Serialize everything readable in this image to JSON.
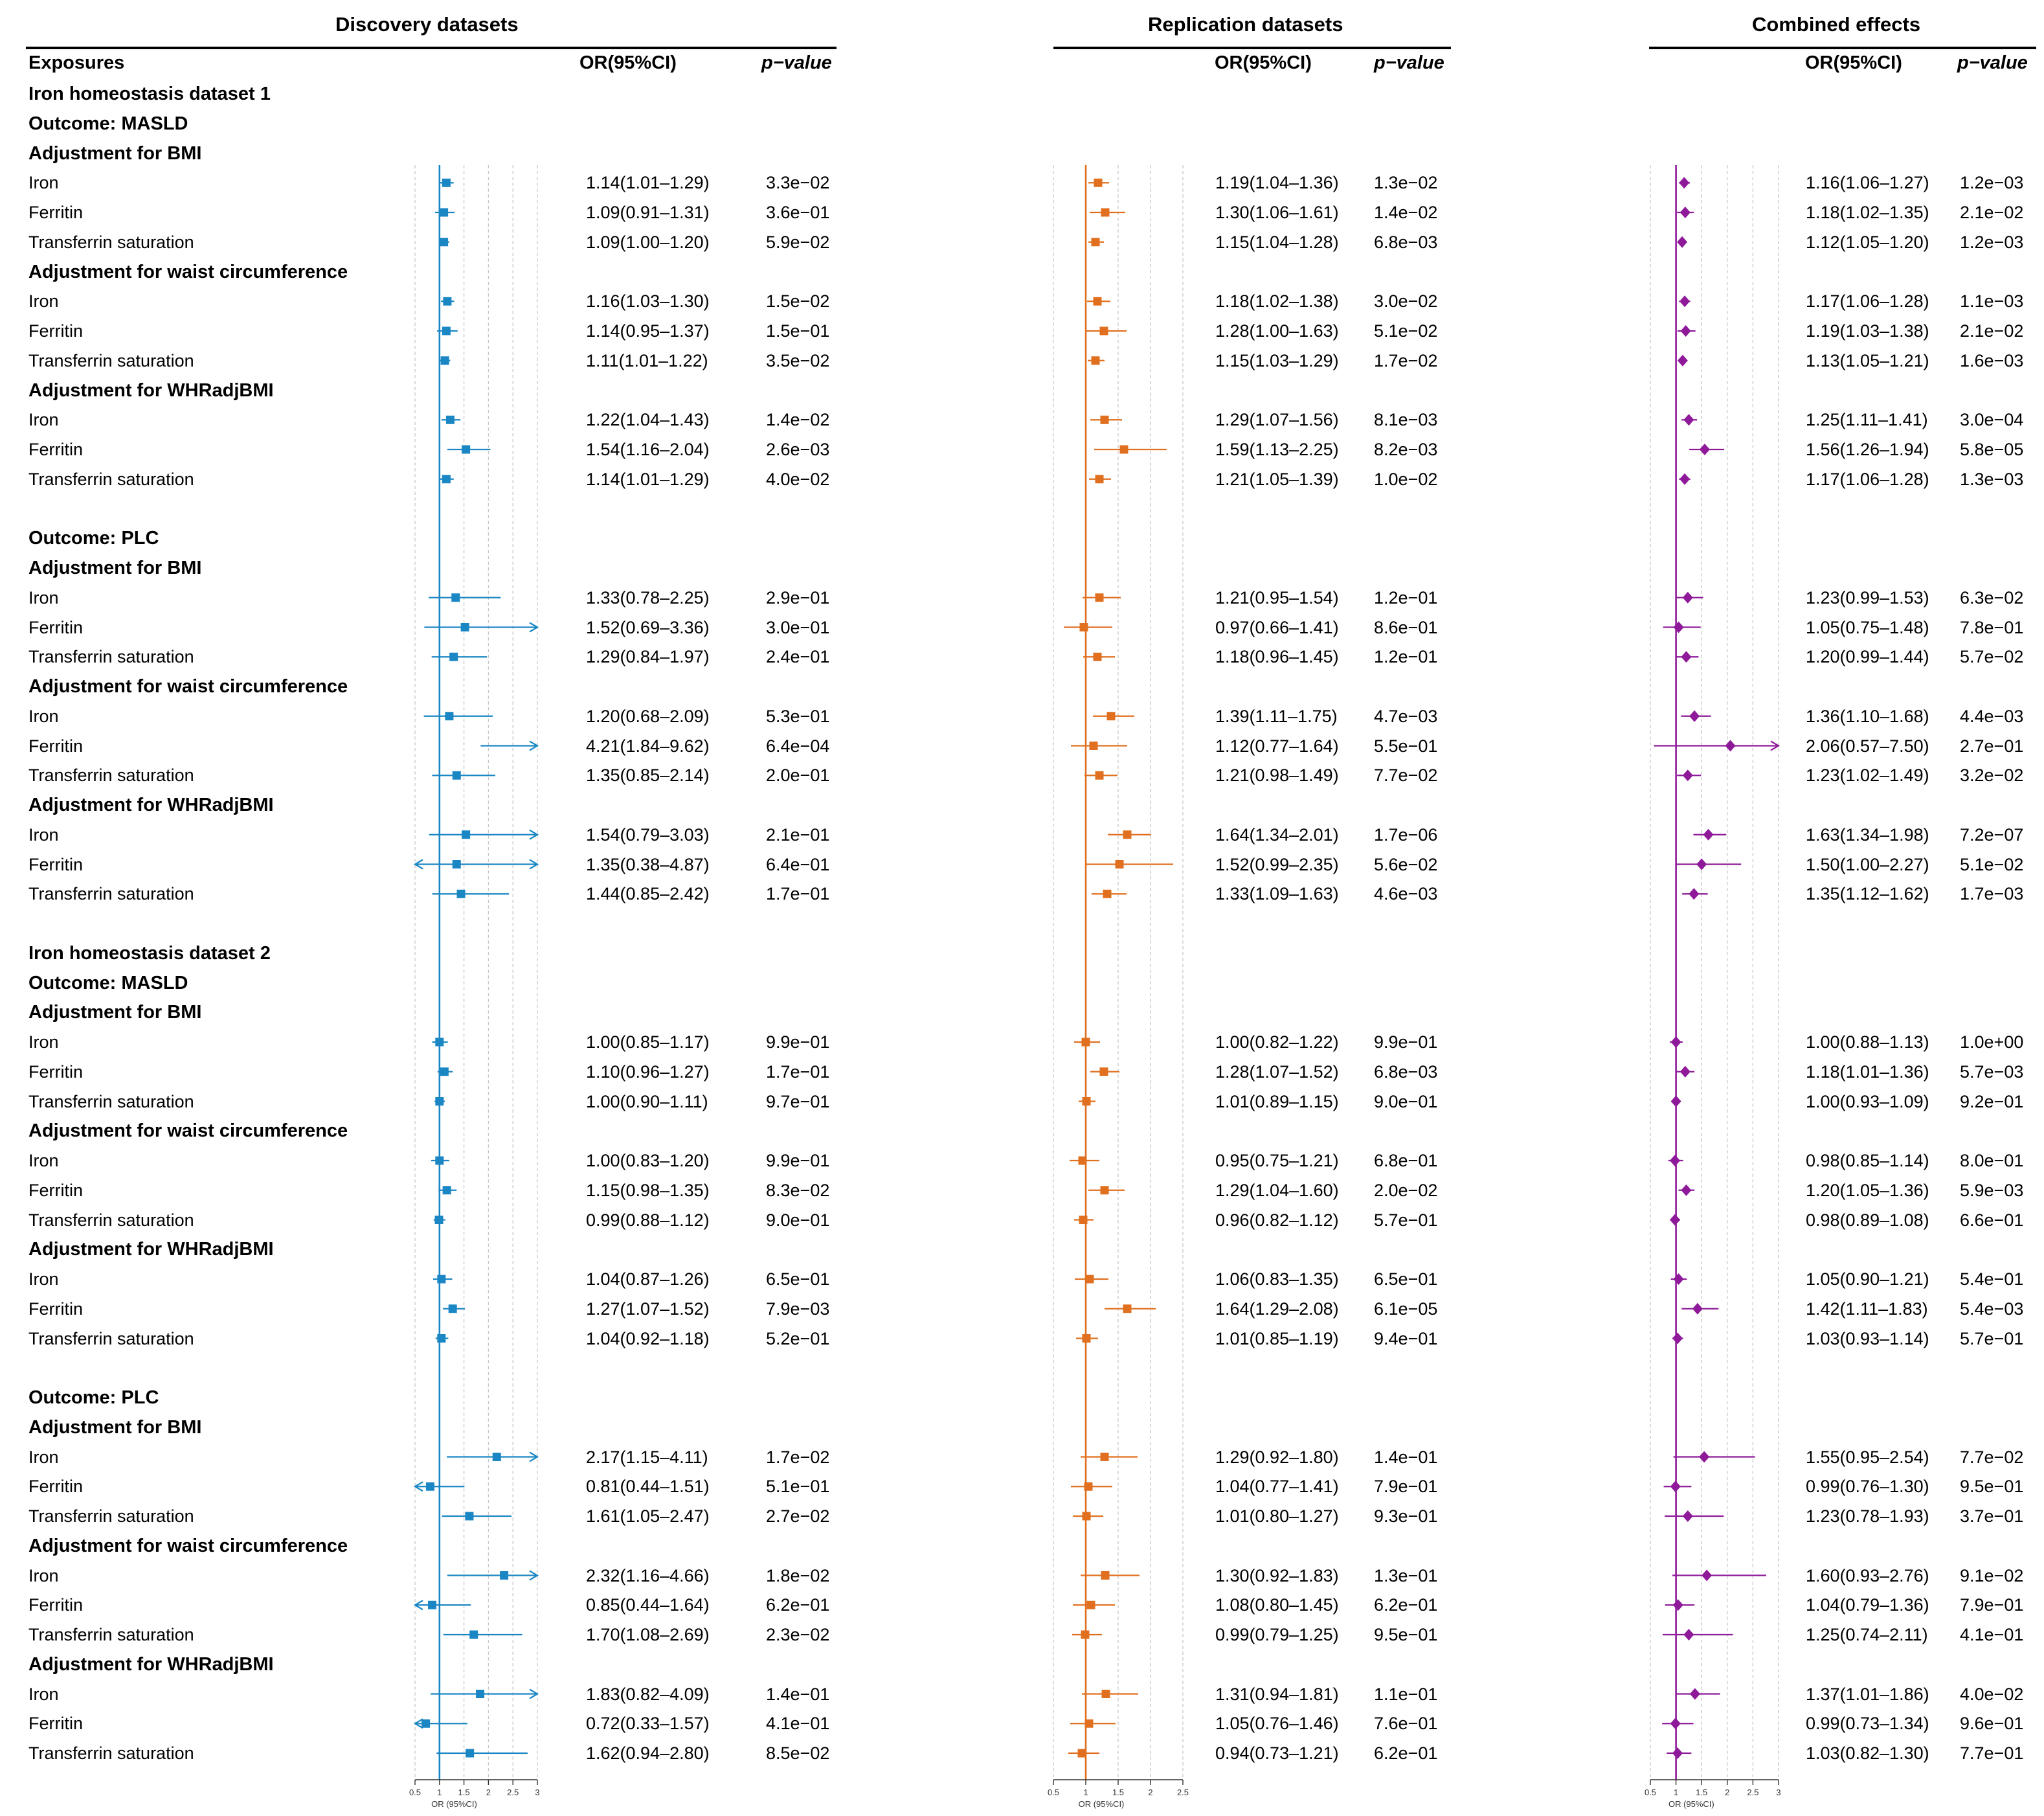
{
  "panels": [
    {
      "title": "Discovery datasets",
      "or_header": "OR(95%CI)",
      "p_header": "p−value",
      "color": "#1a87c4",
      "marker": "square",
      "axis_ticks": [
        "0.5",
        "1",
        "1.5",
        "2",
        "2.5",
        "3"
      ],
      "axis_label": "OR (95%CI)",
      "axis_range": [
        0.5,
        3
      ],
      "tick_values": [
        0.5,
        1,
        1.5,
        2,
        2.5,
        3
      ]
    },
    {
      "title": "Replication datasets",
      "or_header": "OR(95%CI)",
      "p_header": "p−value",
      "color": "#e0701f",
      "marker": "square",
      "axis_ticks": [
        "0.5",
        "1",
        "1.5",
        "2",
        "2.5"
      ],
      "axis_label": "OR (95%CI)",
      "axis_range": [
        0.5,
        2.5
      ],
      "tick_values": [
        0.5,
        1,
        1.5,
        2,
        2.5
      ]
    },
    {
      "title": "Combined effects",
      "or_header": "OR(95%CI)",
      "p_header": "p−value",
      "color": "#8e1a9a",
      "marker": "diamond",
      "axis_ticks": [
        "0.5",
        "1",
        "1.5",
        "2",
        "2.5",
        "3"
      ],
      "axis_label": "OR (95%CI)",
      "axis_range": [
        0.5,
        3
      ],
      "tick_values": [
        0.5,
        1,
        1.5,
        2,
        2.5,
        3
      ]
    }
  ],
  "exposures_header": "Exposures",
  "rows": [
    {
      "kind": "head",
      "label": "Iron homeostasis dataset 1"
    },
    {
      "kind": "head",
      "label": "Outcome: MASLD"
    },
    {
      "kind": "head",
      "label": "Adjustment for BMI"
    },
    {
      "kind": "data",
      "label": "Iron",
      "d": [
        "1.14(1.01–1.29)",
        "3.3e−02",
        1.14,
        1.01,
        1.29
      ],
      "r": [
        "1.19(1.04–1.36)",
        "1.3e−02",
        1.19,
        1.04,
        1.36
      ],
      "c": [
        "1.16(1.06–1.27)",
        "1.2e−03",
        1.16,
        1.06,
        1.27
      ]
    },
    {
      "kind": "data",
      "label": "Ferritin",
      "d": [
        "1.09(0.91–1.31)",
        "3.6e−01",
        1.09,
        0.91,
        1.31
      ],
      "r": [
        "1.30(1.06–1.61)",
        "1.4e−02",
        1.3,
        1.06,
        1.61
      ],
      "c": [
        "1.18(1.02–1.35)",
        "2.1e−02",
        1.18,
        1.02,
        1.35
      ]
    },
    {
      "kind": "data",
      "label": "Transferrin saturation",
      "d": [
        "1.09(1.00–1.20)",
        "5.9e−02",
        1.09,
        1.0,
        1.2
      ],
      "r": [
        "1.15(1.04–1.28)",
        "6.8e−03",
        1.15,
        1.04,
        1.28
      ],
      "c": [
        "1.12(1.05–1.20)",
        "1.2e−03",
        1.12,
        1.05,
        1.2
      ]
    },
    {
      "kind": "head",
      "label": "Adjustment for waist circumference"
    },
    {
      "kind": "data",
      "label": "Iron",
      "d": [
        "1.16(1.03–1.30)",
        "1.5e−02",
        1.16,
        1.03,
        1.3
      ],
      "r": [
        "1.18(1.02–1.38)",
        "3.0e−02",
        1.18,
        1.02,
        1.38
      ],
      "c": [
        "1.17(1.06–1.28)",
        "1.1e−03",
        1.17,
        1.06,
        1.28
      ]
    },
    {
      "kind": "data",
      "label": "Ferritin",
      "d": [
        "1.14(0.95–1.37)",
        "1.5e−01",
        1.14,
        0.95,
        1.37
      ],
      "r": [
        "1.28(1.00–1.63)",
        "5.1e−02",
        1.28,
        1.0,
        1.63
      ],
      "c": [
        "1.19(1.03–1.38)",
        "2.1e−02",
        1.19,
        1.03,
        1.38
      ]
    },
    {
      "kind": "data",
      "label": "Transferrin saturation",
      "d": [
        "1.11(1.01–1.22)",
        "3.5e−02",
        1.11,
        1.01,
        1.22
      ],
      "r": [
        "1.15(1.03–1.29)",
        "1.7e−02",
        1.15,
        1.03,
        1.29
      ],
      "c": [
        "1.13(1.05–1.21)",
        "1.6e−03",
        1.13,
        1.05,
        1.21
      ]
    },
    {
      "kind": "head",
      "label": "Adjustment for WHRadjBMI"
    },
    {
      "kind": "data",
      "label": "Iron",
      "d": [
        "1.22(1.04–1.43)",
        "1.4e−02",
        1.22,
        1.04,
        1.43
      ],
      "r": [
        "1.29(1.07–1.56)",
        "8.1e−03",
        1.29,
        1.07,
        1.56
      ],
      "c": [
        "1.25(1.11–1.41)",
        "3.0e−04",
        1.25,
        1.11,
        1.41
      ]
    },
    {
      "kind": "data",
      "label": "Ferritin",
      "d": [
        "1.54(1.16–2.04)",
        "2.6e−03",
        1.54,
        1.16,
        2.04
      ],
      "r": [
        "1.59(1.13–2.25)",
        "8.2e−03",
        1.59,
        1.13,
        2.25
      ],
      "c": [
        "1.56(1.26–1.94)",
        "5.8e−05",
        1.56,
        1.26,
        1.94
      ]
    },
    {
      "kind": "data",
      "label": "Transferrin saturation",
      "d": [
        "1.14(1.01–1.29)",
        "4.0e−02",
        1.14,
        1.01,
        1.29
      ],
      "r": [
        "1.21(1.05–1.39)",
        "1.0e−02",
        1.21,
        1.05,
        1.39
      ],
      "c": [
        "1.17(1.06–1.28)",
        "1.3e−03",
        1.17,
        1.06,
        1.28
      ]
    },
    {
      "kind": "blank"
    },
    {
      "kind": "head",
      "label": "Outcome: PLC"
    },
    {
      "kind": "head",
      "label": "Adjustment for BMI"
    },
    {
      "kind": "data",
      "label": "Iron",
      "d": [
        "1.33(0.78–2.25)",
        "2.9e−01",
        1.33,
        0.78,
        2.25
      ],
      "r": [
        "1.21(0.95–1.54)",
        "1.2e−01",
        1.21,
        0.95,
        1.54
      ],
      "c": [
        "1.23(0.99–1.53)",
        "6.3e−02",
        1.23,
        0.99,
        1.53
      ]
    },
    {
      "kind": "data",
      "label": "Ferritin",
      "d": [
        "1.52(0.69–3.36)",
        "3.0e−01",
        1.52,
        0.69,
        3.36
      ],
      "r": [
        "0.97(0.66–1.41)",
        "8.6e−01",
        0.97,
        0.66,
        1.41
      ],
      "c": [
        "1.05(0.75–1.48)",
        "7.8e−01",
        1.05,
        0.75,
        1.48
      ]
    },
    {
      "kind": "data",
      "label": "Transferrin saturation",
      "d": [
        "1.29(0.84–1.97)",
        "2.4e−01",
        1.29,
        0.84,
        1.97
      ],
      "r": [
        "1.18(0.96–1.45)",
        "1.2e−01",
        1.18,
        0.96,
        1.45
      ],
      "c": [
        "1.20(0.99–1.44)",
        "5.7e−02",
        1.2,
        0.99,
        1.44
      ]
    },
    {
      "kind": "head",
      "label": "Adjustment for waist circumference"
    },
    {
      "kind": "data",
      "label": "Iron",
      "d": [
        "1.20(0.68–2.09)",
        "5.3e−01",
        1.2,
        0.68,
        2.09
      ],
      "r": [
        "1.39(1.11–1.75)",
        "4.7e−03",
        1.39,
        1.11,
        1.75
      ],
      "c": [
        "1.36(1.10–1.68)",
        "4.4e−03",
        1.36,
        1.1,
        1.68
      ]
    },
    {
      "kind": "data",
      "label": "Ferritin",
      "d": [
        "4.21(1.84–9.62)",
        "6.4e−04",
        4.21,
        1.84,
        9.62
      ],
      "r": [
        "1.12(0.77–1.64)",
        "5.5e−01",
        1.12,
        0.77,
        1.64
      ],
      "c": [
        "2.06(0.57–7.50)",
        "2.7e−01",
        2.06,
        0.57,
        7.5
      ]
    },
    {
      "kind": "data",
      "label": "Transferrin saturation",
      "d": [
        "1.35(0.85–2.14)",
        "2.0e−01",
        1.35,
        0.85,
        2.14
      ],
      "r": [
        "1.21(0.98–1.49)",
        "7.7e−02",
        1.21,
        0.98,
        1.49
      ],
      "c": [
        "1.23(1.02–1.49)",
        "3.2e−02",
        1.23,
        1.02,
        1.49
      ]
    },
    {
      "kind": "head",
      "label": "Adjustment for WHRadjBMI"
    },
    {
      "kind": "data",
      "label": "Iron",
      "d": [
        "1.54(0.79–3.03)",
        "2.1e−01",
        1.54,
        0.79,
        3.03
      ],
      "r": [
        "1.64(1.34–2.01)",
        "1.7e−06",
        1.64,
        1.34,
        2.01
      ],
      "c": [
        "1.63(1.34–1.98)",
        "7.2e−07",
        1.63,
        1.34,
        1.98
      ]
    },
    {
      "kind": "data",
      "label": "Ferritin",
      "d": [
        "1.35(0.38–4.87)",
        "6.4e−01",
        1.35,
        0.38,
        4.87
      ],
      "r": [
        "1.52(0.99–2.35)",
        "5.6e−02",
        1.52,
        0.99,
        2.35
      ],
      "c": [
        "1.50(1.00–2.27)",
        "5.1e−02",
        1.5,
        1.0,
        2.27
      ]
    },
    {
      "kind": "data",
      "label": "Transferrin saturation",
      "d": [
        "1.44(0.85–2.42)",
        "1.7e−01",
        1.44,
        0.85,
        2.42
      ],
      "r": [
        "1.33(1.09–1.63)",
        "4.6e−03",
        1.33,
        1.09,
        1.63
      ],
      "c": [
        "1.35(1.12–1.62)",
        "1.7e−03",
        1.35,
        1.12,
        1.62
      ]
    },
    {
      "kind": "blank"
    },
    {
      "kind": "head",
      "label": "Iron homeostasis dataset 2"
    },
    {
      "kind": "head",
      "label": "Outcome: MASLD"
    },
    {
      "kind": "head",
      "label": "Adjustment for BMI"
    },
    {
      "kind": "data",
      "label": "Iron",
      "d": [
        "1.00(0.85–1.17)",
        "9.9e−01",
        1.0,
        0.85,
        1.17
      ],
      "r": [
        "1.00(0.82–1.22)",
        "9.9e−01",
        1.0,
        0.82,
        1.22
      ],
      "c": [
        "1.00(0.88–1.13)",
        "1.0e+00",
        1.0,
        0.88,
        1.13
      ]
    },
    {
      "kind": "data",
      "label": "Ferritin",
      "d": [
        "1.10(0.96–1.27)",
        "1.7e−01",
        1.1,
        0.96,
        1.27
      ],
      "r": [
        "1.28(1.07–1.52)",
        "6.8e−03",
        1.28,
        1.07,
        1.52
      ],
      "c": [
        "1.18(1.01–1.36)",
        "5.7e−03",
        1.18,
        1.01,
        1.36
      ]
    },
    {
      "kind": "data",
      "label": "Transferrin saturation",
      "d": [
        "1.00(0.90–1.11)",
        "9.7e−01",
        1.0,
        0.9,
        1.11
      ],
      "r": [
        "1.01(0.89–1.15)",
        "9.0e−01",
        1.01,
        0.89,
        1.15
      ],
      "c": [
        "1.00(0.93–1.09)",
        "9.2e−01",
        1.0,
        0.93,
        1.09
      ]
    },
    {
      "kind": "head",
      "label": "Adjustment for waist circumference"
    },
    {
      "kind": "data",
      "label": "Iron",
      "d": [
        "1.00(0.83–1.20)",
        "9.9e−01",
        1.0,
        0.83,
        1.2
      ],
      "r": [
        "0.95(0.75–1.21)",
        "6.8e−01",
        0.95,
        0.75,
        1.21
      ],
      "c": [
        "0.98(0.85–1.14)",
        "8.0e−01",
        0.98,
        0.85,
        1.14
      ]
    },
    {
      "kind": "data",
      "label": "Ferritin",
      "d": [
        "1.15(0.98–1.35)",
        "8.3e−02",
        1.15,
        0.98,
        1.35
      ],
      "r": [
        "1.29(1.04–1.60)",
        "2.0e−02",
        1.29,
        1.04,
        1.6
      ],
      "c": [
        "1.20(1.05–1.36)",
        "5.9e−03",
        1.2,
        1.05,
        1.36
      ]
    },
    {
      "kind": "data",
      "label": "Transferrin saturation",
      "d": [
        "0.99(0.88–1.12)",
        "9.0e−01",
        0.99,
        0.88,
        1.12
      ],
      "r": [
        "0.96(0.82–1.12)",
        "5.7e−01",
        0.96,
        0.82,
        1.12
      ],
      "c": [
        "0.98(0.89–1.08)",
        "6.6e−01",
        0.98,
        0.89,
        1.08
      ]
    },
    {
      "kind": "head",
      "label": "Adjustment for WHRadjBMI"
    },
    {
      "kind": "data",
      "label": "Iron",
      "d": [
        "1.04(0.87–1.26)",
        "6.5e−01",
        1.04,
        0.87,
        1.26
      ],
      "r": [
        "1.06(0.83–1.35)",
        "6.5e−01",
        1.06,
        0.83,
        1.35
      ],
      "c": [
        "1.05(0.90–1.21)",
        "5.4e−01",
        1.05,
        0.9,
        1.21
      ]
    },
    {
      "kind": "data",
      "label": "Ferritin",
      "d": [
        "1.27(1.07–1.52)",
        "7.9e−03",
        1.27,
        1.07,
        1.52
      ],
      "r": [
        "1.64(1.29–2.08)",
        "6.1e−05",
        1.64,
        1.29,
        2.08
      ],
      "c": [
        "1.42(1.11–1.83)",
        "5.4e−03",
        1.42,
        1.11,
        1.83
      ]
    },
    {
      "kind": "data",
      "label": "Transferrin saturation",
      "d": [
        "1.04(0.92–1.18)",
        "5.2e−01",
        1.04,
        0.92,
        1.18
      ],
      "r": [
        "1.01(0.85–1.19)",
        "9.4e−01",
        1.01,
        0.85,
        1.19
      ],
      "c": [
        "1.03(0.93–1.14)",
        "5.7e−01",
        1.03,
        0.93,
        1.14
      ]
    },
    {
      "kind": "blank"
    },
    {
      "kind": "head",
      "label": "Outcome: PLC"
    },
    {
      "kind": "head",
      "label": "Adjustment for BMI"
    },
    {
      "kind": "data",
      "label": "Iron",
      "d": [
        "2.17(1.15–4.11)",
        "1.7e−02",
        2.17,
        1.15,
        4.11
      ],
      "r": [
        "1.29(0.92–1.80)",
        "1.4e−01",
        1.29,
        0.92,
        1.8
      ],
      "c": [
        "1.55(0.95–2.54)",
        "7.7e−02",
        1.55,
        0.95,
        2.54
      ]
    },
    {
      "kind": "data",
      "label": "Ferritin",
      "d": [
        "0.81(0.44–1.51)",
        "5.1e−01",
        0.81,
        0.44,
        1.51
      ],
      "r": [
        "1.04(0.77–1.41)",
        "7.9e−01",
        1.04,
        0.77,
        1.41
      ],
      "c": [
        "0.99(0.76–1.30)",
        "9.5e−01",
        0.99,
        0.76,
        1.3
      ]
    },
    {
      "kind": "data",
      "label": "Transferrin saturation",
      "d": [
        "1.61(1.05–2.47)",
        "2.7e−02",
        1.61,
        1.05,
        2.47
      ],
      "r": [
        "1.01(0.80–1.27)",
        "9.3e−01",
        1.01,
        0.8,
        1.27
      ],
      "c": [
        "1.23(0.78–1.93)",
        "3.7e−01",
        1.23,
        0.78,
        1.93
      ]
    },
    {
      "kind": "head",
      "label": "Adjustment for waist circumference"
    },
    {
      "kind": "data",
      "label": "Iron",
      "d": [
        "2.32(1.16–4.66)",
        "1.8e−02",
        2.32,
        1.16,
        4.66
      ],
      "r": [
        "1.30(0.92–1.83)",
        "1.3e−01",
        1.3,
        0.92,
        1.83
      ],
      "c": [
        "1.60(0.93–2.76)",
        "9.1e−02",
        1.6,
        0.93,
        2.76
      ]
    },
    {
      "kind": "data",
      "label": "Ferritin",
      "d": [
        "0.85(0.44–1.64)",
        "6.2e−01",
        0.85,
        0.44,
        1.64
      ],
      "r": [
        "1.08(0.80–1.45)",
        "6.2e−01",
        1.08,
        0.8,
        1.45
      ],
      "c": [
        "1.04(0.79–1.36)",
        "7.9e−01",
        1.04,
        0.79,
        1.36
      ]
    },
    {
      "kind": "data",
      "label": "Transferrin saturation",
      "d": [
        "1.70(1.08–2.69)",
        "2.3e−02",
        1.7,
        1.08,
        2.69
      ],
      "r": [
        "0.99(0.79–1.25)",
        "9.5e−01",
        0.99,
        0.79,
        1.25
      ],
      "c": [
        "1.25(0.74–2.11)",
        "4.1e−01",
        1.25,
        0.74,
        2.11
      ]
    },
    {
      "kind": "head",
      "label": "Adjustment for WHRadjBMI"
    },
    {
      "kind": "data",
      "label": "Iron",
      "d": [
        "1.83(0.82–4.09)",
        "1.4e−01",
        1.83,
        0.82,
        4.09
      ],
      "r": [
        "1.31(0.94–1.81)",
        "1.1e−01",
        1.31,
        0.94,
        1.81
      ],
      "c": [
        "1.37(1.01–1.86)",
        "4.0e−02",
        1.37,
        1.01,
        1.86
      ]
    },
    {
      "kind": "data",
      "label": "Ferritin",
      "d": [
        "0.72(0.33–1.57)",
        "4.1e−01",
        0.72,
        0.33,
        1.57
      ],
      "r": [
        "1.05(0.76–1.46)",
        "7.6e−01",
        1.05,
        0.76,
        1.46
      ],
      "c": [
        "0.99(0.73–1.34)",
        "9.6e−01",
        0.99,
        0.73,
        1.34
      ]
    },
    {
      "kind": "data",
      "label": "Transferrin saturation",
      "d": [
        "1.62(0.94–2.80)",
        "8.5e−02",
        1.62,
        0.94,
        2.8
      ],
      "r": [
        "0.94(0.73–1.21)",
        "6.2e−01",
        0.94,
        0.73,
        1.21
      ],
      "c": [
        "1.03(0.82–1.30)",
        "7.7e−01",
        1.03,
        0.82,
        1.3
      ]
    }
  ],
  "chart_data": [
    {
      "type": "forest",
      "title": "Discovery datasets",
      "xlabel": "OR (95%CI)",
      "xlim": [
        0.5,
        3
      ],
      "reference_line": 1
    },
    {
      "type": "forest",
      "title": "Replication datasets",
      "xlabel": "OR (95%CI)",
      "xlim": [
        0.5,
        2.5
      ],
      "reference_line": 1
    },
    {
      "type": "forest",
      "title": "Combined effects",
      "xlabel": "OR (95%CI)",
      "xlim": [
        0.5,
        3
      ],
      "reference_line": 1
    }
  ]
}
